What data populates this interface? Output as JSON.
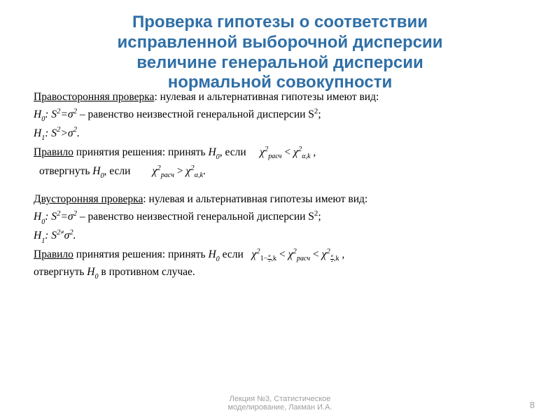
{
  "title_lines": [
    "Проверка гипотезы о соответствии",
    "исправленной выборочной дисперсии",
    "величине генеральной дисперсии",
    "нормальной совокупности"
  ],
  "right": {
    "heading": "Правосторонняя проверка",
    "heading_tail": ": нулевая и альтернативная гипотезы имеют вид:",
    "h0_pre": "H",
    "h0_sub": "0",
    "h0_mid": ": S",
    "h0_sup1": "2",
    "h0_eq": "=σ",
    "h0_sup2": "2",
    "h0_tail": " – равенство неизвестной генеральной дисперсии S",
    "h0_tailsup": "2",
    "h0_end": ";",
    "h1_pre": "H",
    "h1_sub": "1",
    "h1_mid": ": S",
    "h1_sup1": "2",
    "h1_rel": ">σ",
    "h1_sup2": "2",
    "h1_end": ".",
    "rule_word": "Правило",
    "rule_tail": " принятия решения: принять ",
    "rule_h0": "H",
    "rule_h0_sub": "0",
    "rule_if": " если   ",
    "chi_r": "χ",
    "chi_r_sup": "2",
    "chi_r_sub": "расч",
    "lt": " < ",
    "chi_a": "χ",
    "chi_a_sup": "2",
    "chi_a_sub": "α,k",
    "comma": " ,",
    "reject_head": " отвергнуть ",
    "reject_h0": "H",
    "reject_h0_sub": "0",
    "reject_if": ", если ",
    "gt": " > ",
    "period": "."
  },
  "two": {
    "heading": " Двусторонняя проверка",
    "heading_tail": ": нулевая и альтернативная гипотезы имеют вид:",
    "h0_pre": "H",
    "h0_sub": "0",
    "h0_mid": ": S",
    "h0_sup1": "2",
    "h0_eq": "=σ",
    "h0_sup2": "2",
    "h0_tail": " – равенство неизвестной генеральной дисперсии S",
    "h0_tailsup": "2",
    "h0_end": ";",
    "h1_pre": "H",
    "h1_sub": "1",
    "h1_mid": ": S",
    "h1_sup1": "2",
    "h1_neq": "≠",
    "h1_sig": "σ",
    "h1_sup2": "2",
    "h1_end": ".",
    "rule_word": "Правило",
    "rule_tail": " принятия решения: принять ",
    "rule_h0": "H",
    "rule_h0_sub": "0",
    "rule_if": "  если   ",
    "chi_l": "χ",
    "chi_l_sup": "2",
    "lt1": " < ",
    "chi_m": "χ",
    "chi_m_sup": "2",
    "chi_m_sub": "расч",
    "lt2": " < ",
    "chi_r": "χ",
    "chi_r_sup": "2",
    "comma": " ,",
    "reject_head": "отвергнуть ",
    "reject_h0": "H",
    "reject_h0_sub": "0",
    "reject_tail": " в противном случае."
  },
  "footer_lines": [
    "Лекция №3, Статистическое",
    "моделирование, Лакман И.А."
  ],
  "page_num": "8",
  "colors": {
    "title": "#2f6fa7",
    "text": "#000000",
    "footer": "#9e9e9e",
    "bg": "#ffffff"
  },
  "fonts": {
    "title_family": "Arial",
    "title_size_pt": 18,
    "title_weight": "bold",
    "body_family": "Times New Roman",
    "body_size_pt": 12,
    "footer_size_pt": 8
  }
}
